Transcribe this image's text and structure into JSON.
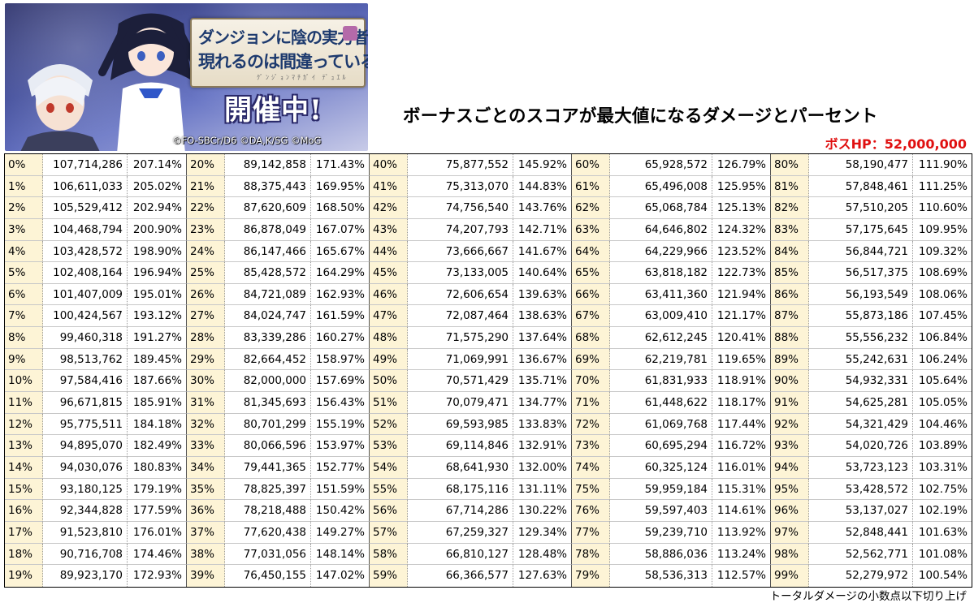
{
  "banner": {
    "logo_line1": "ダンジョンに陰の実力者が",
    "logo_line2": "現れるのは間違っているだろうか",
    "logo_sub": "ｸﾞﾝｼﾞｮﾝﾏﾁｶﾞｲ ﾃﾞｭｴﾙ",
    "event_label": "開催中!",
    "copyright": "©FO-SBCr/D6 ©DA,K/SG ©MoG"
  },
  "title": "ボーナスごとのスコアが最大値になるダメージとパーセント",
  "boss_hp": "ボスHP：52,000,000",
  "footnote": "トータルダメージの小数点以下切り上げ",
  "colors": {
    "highlight_column": "#fdf4d6",
    "boss_hp_text": "#e01010"
  },
  "table": {
    "columns": [
      {
        "rows": [
          [
            "0%",
            "107,714,286",
            "207.14%"
          ],
          [
            "1%",
            "106,611,033",
            "205.02%"
          ],
          [
            "2%",
            "105,529,412",
            "202.94%"
          ],
          [
            "3%",
            "104,468,794",
            "200.90%"
          ],
          [
            "4%",
            "103,428,572",
            "198.90%"
          ],
          [
            "5%",
            "102,408,164",
            "196.94%"
          ],
          [
            "6%",
            "101,407,009",
            "195.01%"
          ],
          [
            "7%",
            "100,424,567",
            "193.12%"
          ],
          [
            "8%",
            "99,460,318",
            "191.27%"
          ],
          [
            "9%",
            "98,513,762",
            "189.45%"
          ],
          [
            "10%",
            "97,584,416",
            "187.66%"
          ],
          [
            "11%",
            "96,671,815",
            "185.91%"
          ],
          [
            "12%",
            "95,775,511",
            "184.18%"
          ],
          [
            "13%",
            "94,895,070",
            "182.49%"
          ],
          [
            "14%",
            "94,030,076",
            "180.83%"
          ],
          [
            "15%",
            "93,180,125",
            "179.19%"
          ],
          [
            "16%",
            "92,344,828",
            "177.59%"
          ],
          [
            "17%",
            "91,523,810",
            "176.01%"
          ],
          [
            "18%",
            "90,716,708",
            "174.46%"
          ],
          [
            "19%",
            "89,923,170",
            "172.93%"
          ]
        ]
      },
      {
        "rows": [
          [
            "20%",
            "89,142,858",
            "171.43%"
          ],
          [
            "21%",
            "88,375,443",
            "169.95%"
          ],
          [
            "22%",
            "87,620,609",
            "168.50%"
          ],
          [
            "23%",
            "86,878,049",
            "167.07%"
          ],
          [
            "24%",
            "86,147,466",
            "165.67%"
          ],
          [
            "25%",
            "85,428,572",
            "164.29%"
          ],
          [
            "26%",
            "84,721,089",
            "162.93%"
          ],
          [
            "27%",
            "84,024,747",
            "161.59%"
          ],
          [
            "28%",
            "83,339,286",
            "160.27%"
          ],
          [
            "29%",
            "82,664,452",
            "158.97%"
          ],
          [
            "30%",
            "82,000,000",
            "157.69%"
          ],
          [
            "31%",
            "81,345,693",
            "156.43%"
          ],
          [
            "32%",
            "80,701,299",
            "155.19%"
          ],
          [
            "33%",
            "80,066,596",
            "153.97%"
          ],
          [
            "34%",
            "79,441,365",
            "152.77%"
          ],
          [
            "35%",
            "78,825,397",
            "151.59%"
          ],
          [
            "36%",
            "78,218,488",
            "150.42%"
          ],
          [
            "37%",
            "77,620,438",
            "149.27%"
          ],
          [
            "38%",
            "77,031,056",
            "148.14%"
          ],
          [
            "39%",
            "76,450,155",
            "147.02%"
          ]
        ]
      },
      {
        "rows": [
          [
            "40%",
            "75,877,552",
            "145.92%"
          ],
          [
            "41%",
            "75,313,070",
            "144.83%"
          ],
          [
            "42%",
            "74,756,540",
            "143.76%"
          ],
          [
            "43%",
            "74,207,793",
            "142.71%"
          ],
          [
            "44%",
            "73,666,667",
            "141.67%"
          ],
          [
            "45%",
            "73,133,005",
            "140.64%"
          ],
          [
            "46%",
            "72,606,654",
            "139.63%"
          ],
          [
            "47%",
            "72,087,464",
            "138.63%"
          ],
          [
            "48%",
            "71,575,290",
            "137.64%"
          ],
          [
            "49%",
            "71,069,991",
            "136.67%"
          ],
          [
            "50%",
            "70,571,429",
            "135.71%"
          ],
          [
            "51%",
            "70,079,471",
            "134.77%"
          ],
          [
            "52%",
            "69,593,985",
            "133.83%"
          ],
          [
            "53%",
            "69,114,846",
            "132.91%"
          ],
          [
            "54%",
            "68,641,930",
            "132.00%"
          ],
          [
            "55%",
            "68,175,116",
            "131.11%"
          ],
          [
            "56%",
            "67,714,286",
            "130.22%"
          ],
          [
            "57%",
            "67,259,327",
            "129.34%"
          ],
          [
            "58%",
            "66,810,127",
            "128.48%"
          ],
          [
            "59%",
            "66,366,577",
            "127.63%"
          ]
        ]
      },
      {
        "rows": [
          [
            "60%",
            "65,928,572",
            "126.79%"
          ],
          [
            "61%",
            "65,496,008",
            "125.95%"
          ],
          [
            "62%",
            "65,068,784",
            "125.13%"
          ],
          [
            "63%",
            "64,646,802",
            "124.32%"
          ],
          [
            "64%",
            "64,229,966",
            "123.52%"
          ],
          [
            "65%",
            "63,818,182",
            "122.73%"
          ],
          [
            "66%",
            "63,411,360",
            "121.94%"
          ],
          [
            "67%",
            "63,009,410",
            "121.17%"
          ],
          [
            "68%",
            "62,612,245",
            "120.41%"
          ],
          [
            "69%",
            "62,219,781",
            "119.65%"
          ],
          [
            "70%",
            "61,831,933",
            "118.91%"
          ],
          [
            "71%",
            "61,448,622",
            "118.17%"
          ],
          [
            "72%",
            "61,069,768",
            "117.44%"
          ],
          [
            "73%",
            "60,695,294",
            "116.72%"
          ],
          [
            "74%",
            "60,325,124",
            "116.01%"
          ],
          [
            "75%",
            "59,959,184",
            "115.31%"
          ],
          [
            "76%",
            "59,597,403",
            "114.61%"
          ],
          [
            "77%",
            "59,239,710",
            "113.92%"
          ],
          [
            "78%",
            "58,886,036",
            "113.24%"
          ],
          [
            "79%",
            "58,536,313",
            "112.57%"
          ]
        ]
      },
      {
        "rows": [
          [
            "80%",
            "58,190,477",
            "111.90%"
          ],
          [
            "81%",
            "57,848,461",
            "111.25%"
          ],
          [
            "82%",
            "57,510,205",
            "110.60%"
          ],
          [
            "83%",
            "57,175,645",
            "109.95%"
          ],
          [
            "84%",
            "56,844,721",
            "109.32%"
          ],
          [
            "85%",
            "56,517,375",
            "108.69%"
          ],
          [
            "86%",
            "56,193,549",
            "108.06%"
          ],
          [
            "87%",
            "55,873,186",
            "107.45%"
          ],
          [
            "88%",
            "55,556,232",
            "106.84%"
          ],
          [
            "89%",
            "55,242,631",
            "106.24%"
          ],
          [
            "90%",
            "54,932,331",
            "105.64%"
          ],
          [
            "91%",
            "54,625,281",
            "105.05%"
          ],
          [
            "92%",
            "54,321,429",
            "104.46%"
          ],
          [
            "93%",
            "54,020,726",
            "103.89%"
          ],
          [
            "94%",
            "53,723,123",
            "103.31%"
          ],
          [
            "95%",
            "53,428,572",
            "102.75%"
          ],
          [
            "96%",
            "53,137,027",
            "102.19%"
          ],
          [
            "97%",
            "52,848,441",
            "101.63%"
          ],
          [
            "98%",
            "52,562,771",
            "101.08%"
          ],
          [
            "99%",
            "52,279,972",
            "100.54%"
          ]
        ]
      }
    ]
  }
}
